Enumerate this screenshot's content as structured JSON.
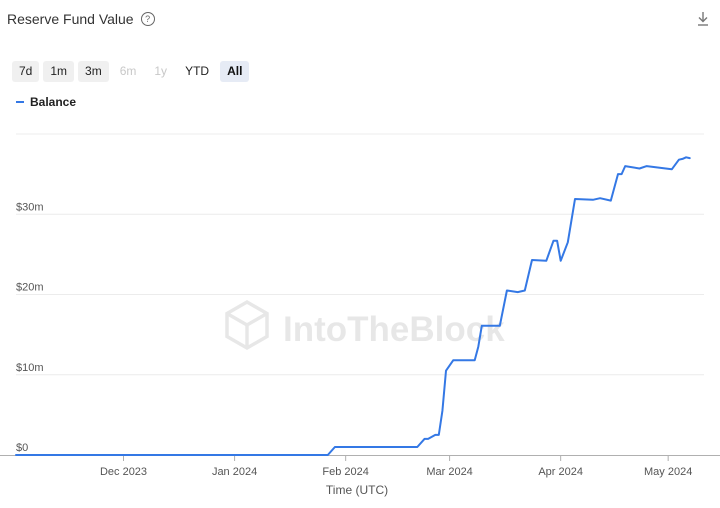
{
  "header": {
    "title": "Reserve Fund Value",
    "help_icon": "?"
  },
  "icons": {
    "help": "question-circle-icon",
    "download": "download-icon"
  },
  "ranges": [
    {
      "label": "7d",
      "state": "shaded"
    },
    {
      "label": "1m",
      "state": "shaded"
    },
    {
      "label": "3m",
      "state": "shaded"
    },
    {
      "label": "6m",
      "state": "disabled"
    },
    {
      "label": "1y",
      "state": "disabled"
    },
    {
      "label": "YTD",
      "state": "normal"
    },
    {
      "label": "All",
      "state": "active"
    }
  ],
  "watermark": "IntoTheBlock",
  "colors": {
    "line": "#3478e5",
    "grid": "#ececec",
    "axis_text": "#555555"
  },
  "chart_data": {
    "type": "line",
    "title": "Reserve Fund Value",
    "xlabel": "Time (UTC)",
    "ylabel": "",
    "legend": "top-left",
    "grid": true,
    "ylim": [
      0,
      40000000
    ],
    "xlim": [
      "2023-11-01",
      "2024-05-11"
    ],
    "y_ticks": [
      {
        "value": 0,
        "label": "$0"
      },
      {
        "value": 10000000,
        "label": "$10m"
      },
      {
        "value": 20000000,
        "label": "$20m"
      },
      {
        "value": 30000000,
        "label": "$30m"
      }
    ],
    "x_ticks": [
      {
        "value": "2023-12-01",
        "label": "Dec 2023"
      },
      {
        "value": "2024-01-01",
        "label": "Jan 2024"
      },
      {
        "value": "2024-02-01",
        "label": "Feb 2024"
      },
      {
        "value": "2024-03-01",
        "label": "Mar 2024"
      },
      {
        "value": "2024-04-01",
        "label": "Apr 2024"
      },
      {
        "value": "2024-05-01",
        "label": "May 2024"
      }
    ],
    "series": [
      {
        "name": "Balance",
        "points": [
          [
            "2023-11-01",
            0
          ],
          [
            "2024-01-27",
            0
          ],
          [
            "2024-01-29",
            1000000
          ],
          [
            "2024-02-21",
            1000000
          ],
          [
            "2024-02-23",
            2000000
          ],
          [
            "2024-02-24",
            2000000
          ],
          [
            "2024-02-26",
            2500000
          ],
          [
            "2024-02-27",
            2500000
          ],
          [
            "2024-02-28",
            5500000
          ],
          [
            "2024-02-29",
            10500000
          ],
          [
            "2024-03-02",
            11800000
          ],
          [
            "2024-03-08",
            11800000
          ],
          [
            "2024-03-09",
            13500000
          ],
          [
            "2024-03-10",
            16100000
          ],
          [
            "2024-03-15",
            16100000
          ],
          [
            "2024-03-17",
            20500000
          ],
          [
            "2024-03-20",
            20300000
          ],
          [
            "2024-03-22",
            20500000
          ],
          [
            "2024-03-24",
            24300000
          ],
          [
            "2024-03-28",
            24200000
          ],
          [
            "2024-03-30",
            26700000
          ],
          [
            "2024-03-31",
            26700000
          ],
          [
            "2024-04-01",
            24200000
          ],
          [
            "2024-04-03",
            26500000
          ],
          [
            "2024-04-05",
            31900000
          ],
          [
            "2024-04-10",
            31800000
          ],
          [
            "2024-04-12",
            32000000
          ],
          [
            "2024-04-15",
            31700000
          ],
          [
            "2024-04-17",
            35000000
          ],
          [
            "2024-04-18",
            35000000
          ],
          [
            "2024-04-19",
            36000000
          ],
          [
            "2024-04-23",
            35700000
          ],
          [
            "2024-04-25",
            36000000
          ],
          [
            "2024-05-02",
            35600000
          ],
          [
            "2024-05-04",
            36800000
          ],
          [
            "2024-05-05",
            36900000
          ],
          [
            "2024-05-06",
            37100000
          ],
          [
            "2024-05-07",
            37000000
          ]
        ]
      }
    ]
  }
}
